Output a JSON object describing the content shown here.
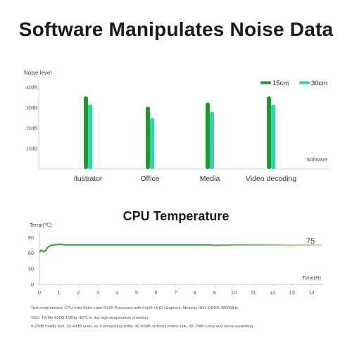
{
  "title": "Software Manipulates Noise Data",
  "notes": [
    "Test environment: CPU-Intel Alder Lake N100 Processor with Intel® UHD Graphics,  Memory-16G-DDR5-4800MHz,",
    "SSD- NVMe 500G,1080p, 40℃ in the high temperature chamber.",
    "0-20dB hardly feel, 20-40dB quiet, as if whispering softly; 40-60dB ordinary indoor talk, 60-70dB noisy and nerve-wounding."
  ],
  "chart_data": [
    {
      "type": "bar",
      "title": "",
      "ylabel": "Noise level",
      "xlabel": "Software",
      "categories": [
        "Ilustrator",
        "Office",
        "Media",
        "Video decoding"
      ],
      "y_ticks": [
        "10dB",
        "20dB",
        "30dB",
        "40dB"
      ],
      "ylim": [
        0,
        45
      ],
      "grid": false,
      "legend_position": "top-right",
      "series": [
        {
          "name": "15cm",
          "color": "#1f9a2e",
          "values": [
            35.5,
            30.5,
            32.5,
            35.5
          ]
        },
        {
          "name": "30cm",
          "color": "#2fd3b3",
          "values": [
            31.5,
            25,
            28,
            31.5
          ]
        }
      ]
    },
    {
      "type": "line",
      "title": "CPU Temperature",
      "ylabel": "Temp(℃)",
      "xlabel": "Time(H)",
      "x_ticks": [
        "0",
        "1",
        "2",
        "3",
        "4",
        "5",
        "6",
        "7",
        "8",
        "9",
        "10",
        "11",
        "12",
        "13",
        "14"
      ],
      "y_ticks": [
        "0",
        "30",
        "60",
        "90"
      ],
      "xlim": [
        0,
        14.5
      ],
      "ylim": [
        0,
        100
      ],
      "grid": false,
      "annotations": [
        "75"
      ],
      "series": [
        {
          "color": "#3cad3c",
          "x": [
            0,
            0.1,
            0.2,
            0.3,
            0.4,
            0.5,
            0.6,
            0.8,
            1.0,
            1.1,
            1.3,
            1.6,
            2,
            3,
            4,
            5,
            6,
            7,
            8,
            8.8,
            9,
            9.5,
            10,
            10.5,
            11,
            11.5,
            12,
            12.5,
            13,
            13.5,
            14,
            14.5
          ],
          "y": [
            62,
            66,
            63,
            64,
            70,
            73,
            75,
            76,
            77,
            77,
            76,
            76,
            76,
            76,
            76,
            76,
            76,
            76,
            76,
            76,
            75,
            75.5,
            76,
            76,
            76,
            76,
            76,
            76,
            75,
            76,
            76,
            76
          ]
        }
      ]
    }
  ]
}
